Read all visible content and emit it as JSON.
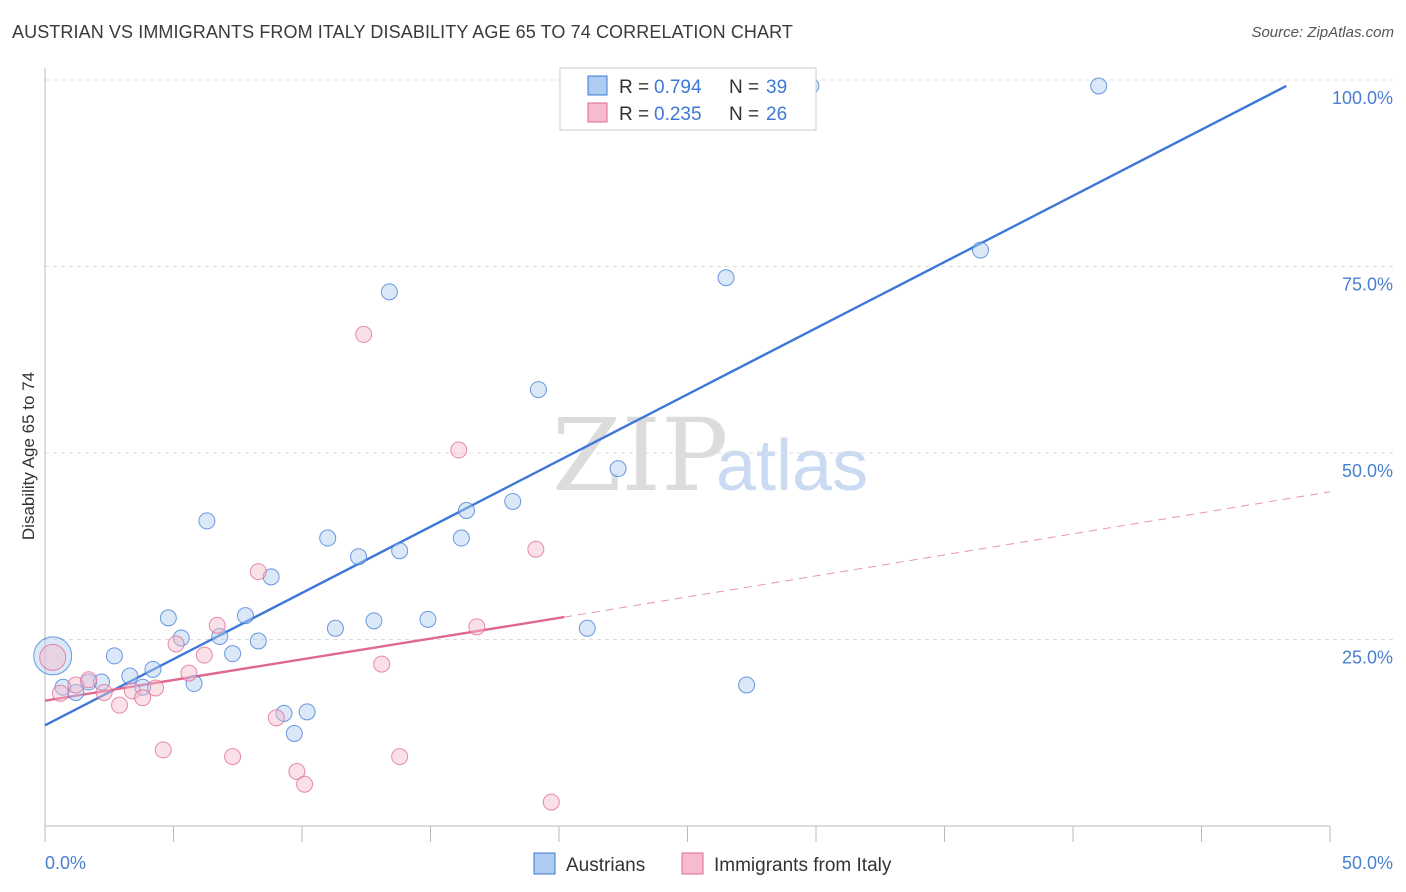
{
  "title": "AUSTRIAN VS IMMIGRANTS FROM ITALY DISABILITY AGE 65 TO 74 CORRELATION CHART",
  "source": "Source: ZipAtlas.com",
  "watermark": {
    "zip": "ZIP",
    "atlas": "atlas"
  },
  "colors": {
    "blue": "#3d78d8",
    "blue_fill": "#aecbf0",
    "pink": "#e0678f",
    "pink_fill": "#f5bccd",
    "grid": "#dddddd"
  },
  "legend": {
    "series": [
      {
        "r_label": "R =",
        "r_value": "0.794",
        "n_label": "N =",
        "n_value": "39"
      },
      {
        "r_label": "R =",
        "r_value": "0.235",
        "n_label": "N =",
        "n_value": "26"
      }
    ]
  },
  "chart_data": {
    "type": "scatter",
    "title": "AUSTRIAN VS IMMIGRANTS FROM ITALY DISABILITY AGE 65 TO 74 CORRELATION CHART",
    "xlabel": "",
    "ylabel": "Disability Age 65 to 74",
    "xlim": [
      0,
      50
    ],
    "ylim": [
      0,
      100
    ],
    "x_tick_labels": [
      "0.0%",
      "50.0%"
    ],
    "y_ticks": [
      25,
      50,
      75,
      100
    ],
    "y_tick_labels": [
      "25.0%",
      "50.0%",
      "75.0%",
      "100.0%"
    ],
    "grid": true,
    "series": [
      {
        "name": "Austrians",
        "color": "#3d78d8",
        "points": [
          [
            0.3,
            22.8
          ],
          [
            0.7,
            18.6
          ],
          [
            1.2,
            17.9
          ],
          [
            1.7,
            19.3
          ],
          [
            2.2,
            19.3
          ],
          [
            2.7,
            22.8
          ],
          [
            3.3,
            20.1
          ],
          [
            3.8,
            18.6
          ],
          [
            4.2,
            21.0
          ],
          [
            4.8,
            27.9
          ],
          [
            5.3,
            25.2
          ],
          [
            5.8,
            19.1
          ],
          [
            6.3,
            40.9
          ],
          [
            6.8,
            25.4
          ],
          [
            7.3,
            23.1
          ],
          [
            7.8,
            28.2
          ],
          [
            8.3,
            24.8
          ],
          [
            8.8,
            33.4
          ],
          [
            9.3,
            15.1
          ],
          [
            9.7,
            12.4
          ],
          [
            10.2,
            15.3
          ],
          [
            11.0,
            38.6
          ],
          [
            11.3,
            26.5
          ],
          [
            12.2,
            36.1
          ],
          [
            12.8,
            27.5
          ],
          [
            13.4,
            71.6
          ],
          [
            13.8,
            36.9
          ],
          [
            14.9,
            27.7
          ],
          [
            16.2,
            38.6
          ],
          [
            16.4,
            42.3
          ],
          [
            18.2,
            43.5
          ],
          [
            19.2,
            58.5
          ],
          [
            21.1,
            26.5
          ],
          [
            22.3,
            47.9
          ],
          [
            26.5,
            73.5
          ],
          [
            27.3,
            18.9
          ],
          [
            29.8,
            99.2
          ],
          [
            36.4,
            77.2
          ],
          [
            41.0,
            99.2
          ]
        ],
        "trend": {
          "x": [
            0,
            48.3
          ],
          "y": [
            13.5,
            99.2
          ]
        }
      },
      {
        "name": "Immigrants from Italy",
        "color": "#e0678f",
        "points": [
          [
            0.3,
            22.6
          ],
          [
            0.6,
            17.8
          ],
          [
            1.2,
            18.9
          ],
          [
            1.7,
            19.6
          ],
          [
            2.3,
            17.9
          ],
          [
            2.9,
            16.2
          ],
          [
            3.4,
            18.1
          ],
          [
            3.8,
            17.2
          ],
          [
            4.3,
            18.5
          ],
          [
            4.6,
            10.2
          ],
          [
            5.1,
            24.4
          ],
          [
            5.6,
            20.5
          ],
          [
            6.2,
            22.9
          ],
          [
            6.7,
            26.9
          ],
          [
            7.3,
            9.3
          ],
          [
            8.3,
            34.1
          ],
          [
            9.0,
            14.5
          ],
          [
            9.8,
            7.3
          ],
          [
            10.1,
            5.6
          ],
          [
            12.4,
            65.9
          ],
          [
            13.1,
            21.7
          ],
          [
            13.8,
            9.3
          ],
          [
            16.1,
            50.4
          ],
          [
            16.8,
            26.7
          ],
          [
            19.1,
            37.1
          ],
          [
            19.7,
            3.2
          ]
        ],
        "trend": {
          "x": [
            0,
            20.2
          ],
          "y": [
            16.8,
            28.0
          ]
        },
        "trend_extension": {
          "x": [
            20.2,
            50
          ],
          "y": [
            28.0,
            44.8
          ]
        }
      }
    ]
  },
  "bottom_legend": [
    "Austrians",
    "Immigrants from Italy"
  ]
}
